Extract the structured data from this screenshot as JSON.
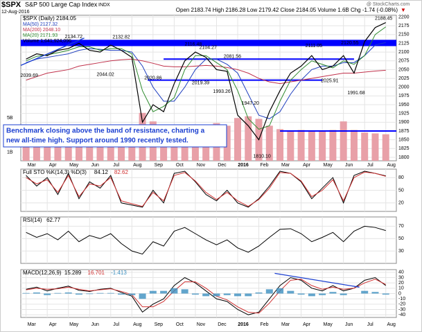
{
  "header": {
    "symbol": "$SPX",
    "name": "S&P 500 Large Cap Index",
    "exchange": "INDX",
    "date": "12-Aug-2016",
    "quote": "Open 2183.74  High 2186.28  Low 2179.42  Close 2184.05  Volume 1.6B  Chg -1.74 (-0.08%)",
    "arrow": "▼",
    "watermark": "@ StockCharts.com",
    "callout": [
      "Benchmark closing above the band of resistance, charting a",
      "new all-time high. Support around 1990 recently tested."
    ]
  },
  "chart_data": [
    {
      "type": "line",
      "title": "$SPX (Daily) 2184.05",
      "xlim": [
        -0.5,
        35
      ],
      "ylim": [
        1790,
        2205
      ],
      "yticks": [
        1800,
        1825,
        1850,
        1875,
        1900,
        1925,
        1950,
        1975,
        2000,
        2025,
        2050,
        2075,
        2100,
        2125,
        2150,
        2175,
        2200
      ],
      "xticks": [
        {
          "value": 0,
          "label": "Mar"
        },
        {
          "value": 2,
          "label": "Apr"
        },
        {
          "value": 4,
          "label": "May"
        },
        {
          "value": 6,
          "label": "Jun"
        },
        {
          "value": 8,
          "label": "Jul"
        },
        {
          "value": 10,
          "label": "Aug"
        },
        {
          "value": 12,
          "label": "Sep"
        },
        {
          "value": 14,
          "label": "Oct"
        },
        {
          "value": 16,
          "label": "Nov"
        },
        {
          "value": 18,
          "label": "Dec"
        },
        {
          "value": 20,
          "label": "2016"
        },
        {
          "value": 22,
          "label": "Feb"
        },
        {
          "value": 24,
          "label": "Mar"
        },
        {
          "value": 26,
          "label": "Apr"
        },
        {
          "value": 28,
          "label": "May"
        },
        {
          "value": 30,
          "label": "Jun"
        },
        {
          "value": 32,
          "label": "Jul"
        },
        {
          "value": 34,
          "label": "Aug"
        }
      ],
      "series": [
        {
          "name": "MA(50) 2127.32",
          "color": "#1f3fbf",
          "values": [
            2070,
            2080,
            2085,
            2090,
            2095,
            2105,
            2110,
            2108,
            2105,
            2105,
            2100,
            2060,
            2000,
            1960,
            1960,
            2000,
            2050,
            2080,
            2080,
            2065,
            2040,
            1980,
            1920,
            1910,
            1930,
            1980,
            2020,
            2050,
            2060,
            2060,
            2070,
            2070,
            2090,
            2120,
            2127.32
          ]
        },
        {
          "name": "MA(200) 2048.10",
          "color": "#c0304a",
          "values": [
            2020,
            2030,
            2040,
            2045,
            2050,
            2060,
            2065,
            2070,
            2075,
            2078,
            2080,
            2075,
            2068,
            2060,
            2058,
            2058,
            2060,
            2062,
            2060,
            2056,
            2050,
            2040,
            2025,
            2015,
            2010,
            2015,
            2020,
            2025,
            2030,
            2035,
            2040,
            2040,
            2043,
            2046,
            2048.1
          ]
        },
        {
          "name": "MA(20) 2171.93",
          "color": "#2e8b2e",
          "values": [
            2075,
            2088,
            2092,
            2098,
            2105,
            2115,
            2115,
            2105,
            2110,
            2110,
            2095,
            1990,
            1930,
            1945,
            1970,
            2050,
            2090,
            2090,
            2070,
            2050,
            1990,
            1910,
            1880,
            1890,
            1960,
            2020,
            2050,
            2075,
            2065,
            2055,
            2075,
            2065,
            2090,
            2150,
            2171.93
          ]
        },
        {
          "name": "Close",
          "color": "#000000",
          "values": [
            2080,
            2095,
            2090,
            2105,
            2110,
            2125,
            2105,
            2100,
            2120,
            2105,
            2085,
            1900,
            1950,
            1930,
            2010,
            2075,
            2100,
            2085,
            2050,
            2045,
            1920,
            1890,
            1850,
            1930,
            1990,
            2040,
            2060,
            2090,
            2050,
            2060,
            2090,
            2040,
            2130,
            2170,
            2184.05
          ]
        }
      ],
      "volume": {
        "name": "Volume 1,641,924,096",
        "color": "#e8a0a8",
        "ylim": [
          0,
          17
        ],
        "yticks": [
          {
            "value": 5,
            "label": "5B"
          },
          {
            "value": 1,
            "label": "1B"
          }
        ],
        "values": [
          3.6,
          3.4,
          3.5,
          3.3,
          3.4,
          3.2,
          3.6,
          3.8,
          3.5,
          3.3,
          3.7,
          5.6,
          4.6,
          4.2,
          3.9,
          3.8,
          3.6,
          3.9,
          4.4,
          4.1,
          5.0,
          5.2,
          4.9,
          4.1,
          3.7,
          3.5,
          3.6,
          3.4,
          3.5,
          3.6,
          4.6,
          3.6,
          3.3,
          3.2,
          3.1
        ]
      },
      "band": [
        2117,
        2135
      ],
      "band_color": "#0000ff",
      "levels": [
        {
          "y": 2080,
          "from": 13,
          "to": 31
        },
        {
          "y": 2020,
          "from": 11.5,
          "to": 28
        },
        {
          "y": 1875,
          "from": 24,
          "to": 35
        }
      ],
      "trendline": [
        [
          -0.5,
          2062
        ],
        [
          5.5,
          2140
        ]
      ],
      "annotations": [
        {
          "text": "2134.72",
          "x": 4.5,
          "y": 2143
        },
        {
          "text": "2132.82",
          "x": 9,
          "y": 2142
        },
        {
          "text": "2039.69",
          "x": 0.3,
          "y": 2033
        },
        {
          "text": "2044.02",
          "x": 7.5,
          "y": 2036
        },
        {
          "text": "2020.86",
          "x": 12,
          "y": 2026
        },
        {
          "text": "2116.48",
          "x": 15.8,
          "y": 2122
        },
        {
          "text": "2104.27",
          "x": 17.2,
          "y": 2113
        },
        {
          "text": "2081.56",
          "x": 19.5,
          "y": 2087
        },
        {
          "text": "2019.39",
          "x": 16.5,
          "y": 2012
        },
        {
          "text": "1993.26",
          "x": 18.5,
          "y": 1987
        },
        {
          "text": "1947.20",
          "x": 21.2,
          "y": 1954
        },
        {
          "text": "1810.10",
          "x": 22.3,
          "y": 1803
        },
        {
          "text": "2111.05",
          "x": 27.2,
          "y": 2118
        },
        {
          "text": "2120.55",
          "x": 30.6,
          "y": 2126
        },
        {
          "text": "2025.91",
          "x": 28.7,
          "y": 2018
        },
        {
          "text": "1991.68",
          "x": 31.2,
          "y": 1983
        },
        {
          "text": "2188.45",
          "x": 33.8,
          "y": 2196
        }
      ]
    },
    {
      "type": "line",
      "title": "Full STO %K(14,3) %D(3)",
      "xlim": [
        -0.5,
        35
      ],
      "ylim": [
        0,
        100
      ],
      "yticks": [
        20,
        50,
        80
      ],
      "series": [
        {
          "name": "84.12",
          "color": "#000000",
          "values": [
            85,
            60,
            80,
            40,
            90,
            30,
            70,
            55,
            85,
            20,
            15,
            10,
            50,
            20,
            90,
            95,
            70,
            40,
            25,
            50,
            20,
            10,
            30,
            60,
            95,
            90,
            70,
            30,
            55,
            80,
            20,
            85,
            95,
            90,
            84
          ]
        },
        {
          "name": "82.62",
          "color": "#d03030",
          "values": [
            80,
            65,
            75,
            45,
            85,
            35,
            65,
            60,
            80,
            25,
            18,
            12,
            45,
            25,
            85,
            92,
            72,
            45,
            28,
            45,
            25,
            12,
            28,
            55,
            92,
            90,
            72,
            35,
            50,
            75,
            25,
            80,
            93,
            90,
            83
          ]
        }
      ]
    },
    {
      "type": "line",
      "title": "RSI(14)",
      "xlim": [
        -0.5,
        35
      ],
      "ylim": [
        10,
        85
      ],
      "yticks": [
        30,
        50,
        70
      ],
      "series": [
        {
          "name": "62.77",
          "color": "#000000",
          "values": [
            60,
            52,
            58,
            48,
            62,
            45,
            55,
            50,
            58,
            42,
            30,
            25,
            45,
            38,
            62,
            68,
            58,
            48,
            40,
            48,
            35,
            28,
            38,
            52,
            65,
            66,
            58,
            45,
            52,
            60,
            45,
            62,
            70,
            68,
            63
          ]
        }
      ]
    },
    {
      "type": "line",
      "title": "MACD(12,26,9)",
      "xlim": [
        -0.5,
        35
      ],
      "ylim": [
        -45,
        45
      ],
      "yticks": [
        -40,
        -30,
        -20,
        -10,
        0,
        10,
        20,
        30,
        40
      ],
      "xticks": [
        {
          "value": 0,
          "label": "Mar"
        },
        {
          "value": 2,
          "label": "Apr"
        },
        {
          "value": 4,
          "label": "May"
        },
        {
          "value": 6,
          "label": "Jun"
        },
        {
          "value": 8,
          "label": "Jul"
        },
        {
          "value": 10,
          "label": "Aug"
        },
        {
          "value": 12,
          "label": "Sep"
        },
        {
          "value": 14,
          "label": "Oct"
        },
        {
          "value": 16,
          "label": "Nov"
        },
        {
          "value": 18,
          "label": "Dec"
        },
        {
          "value": 20,
          "label": "2016"
        },
        {
          "value": 22,
          "label": "Feb"
        },
        {
          "value": 24,
          "label": "Mar"
        },
        {
          "value": 26,
          "label": "Apr"
        },
        {
          "value": 28,
          "label": "May"
        },
        {
          "value": 30,
          "label": "Jun"
        },
        {
          "value": 32,
          "label": "Jul"
        },
        {
          "value": 34,
          "label": "Aug"
        }
      ],
      "series": [
        {
          "name": "15.289",
          "color": "#000000",
          "values": [
            8,
            12,
            5,
            10,
            14,
            6,
            4,
            8,
            10,
            2,
            -5,
            -35,
            -20,
            -10,
            15,
            30,
            20,
            5,
            -10,
            -15,
            -30,
            -40,
            -35,
            -10,
            15,
            30,
            25,
            10,
            5,
            15,
            5,
            10,
            25,
            30,
            15
          ]
        },
        {
          "name": "16.701",
          "color": "#d03030",
          "values": [
            7,
            10,
            8,
            9,
            12,
            8,
            5,
            7,
            9,
            4,
            -2,
            -25,
            -25,
            -15,
            5,
            22,
            22,
            10,
            -5,
            -12,
            -25,
            -35,
            -37,
            -18,
            5,
            25,
            27,
            15,
            8,
            12,
            8,
            10,
            20,
            27,
            17
          ]
        },
        {
          "name": "-1.413",
          "color": "#3b8fbf",
          "type": "bar",
          "values": [
            1,
            2,
            -3,
            1,
            2,
            -2,
            -1,
            1,
            1,
            -2,
            -3,
            -10,
            5,
            5,
            10,
            8,
            -2,
            -5,
            -5,
            -3,
            -5,
            -5,
            2,
            8,
            10,
            5,
            -2,
            -5,
            -3,
            3,
            -3,
            0,
            5,
            3,
            -2
          ]
        }
      ],
      "trendline": [
        [
          23.5,
          38
        ],
        [
          31.5,
          12
        ]
      ]
    }
  ]
}
